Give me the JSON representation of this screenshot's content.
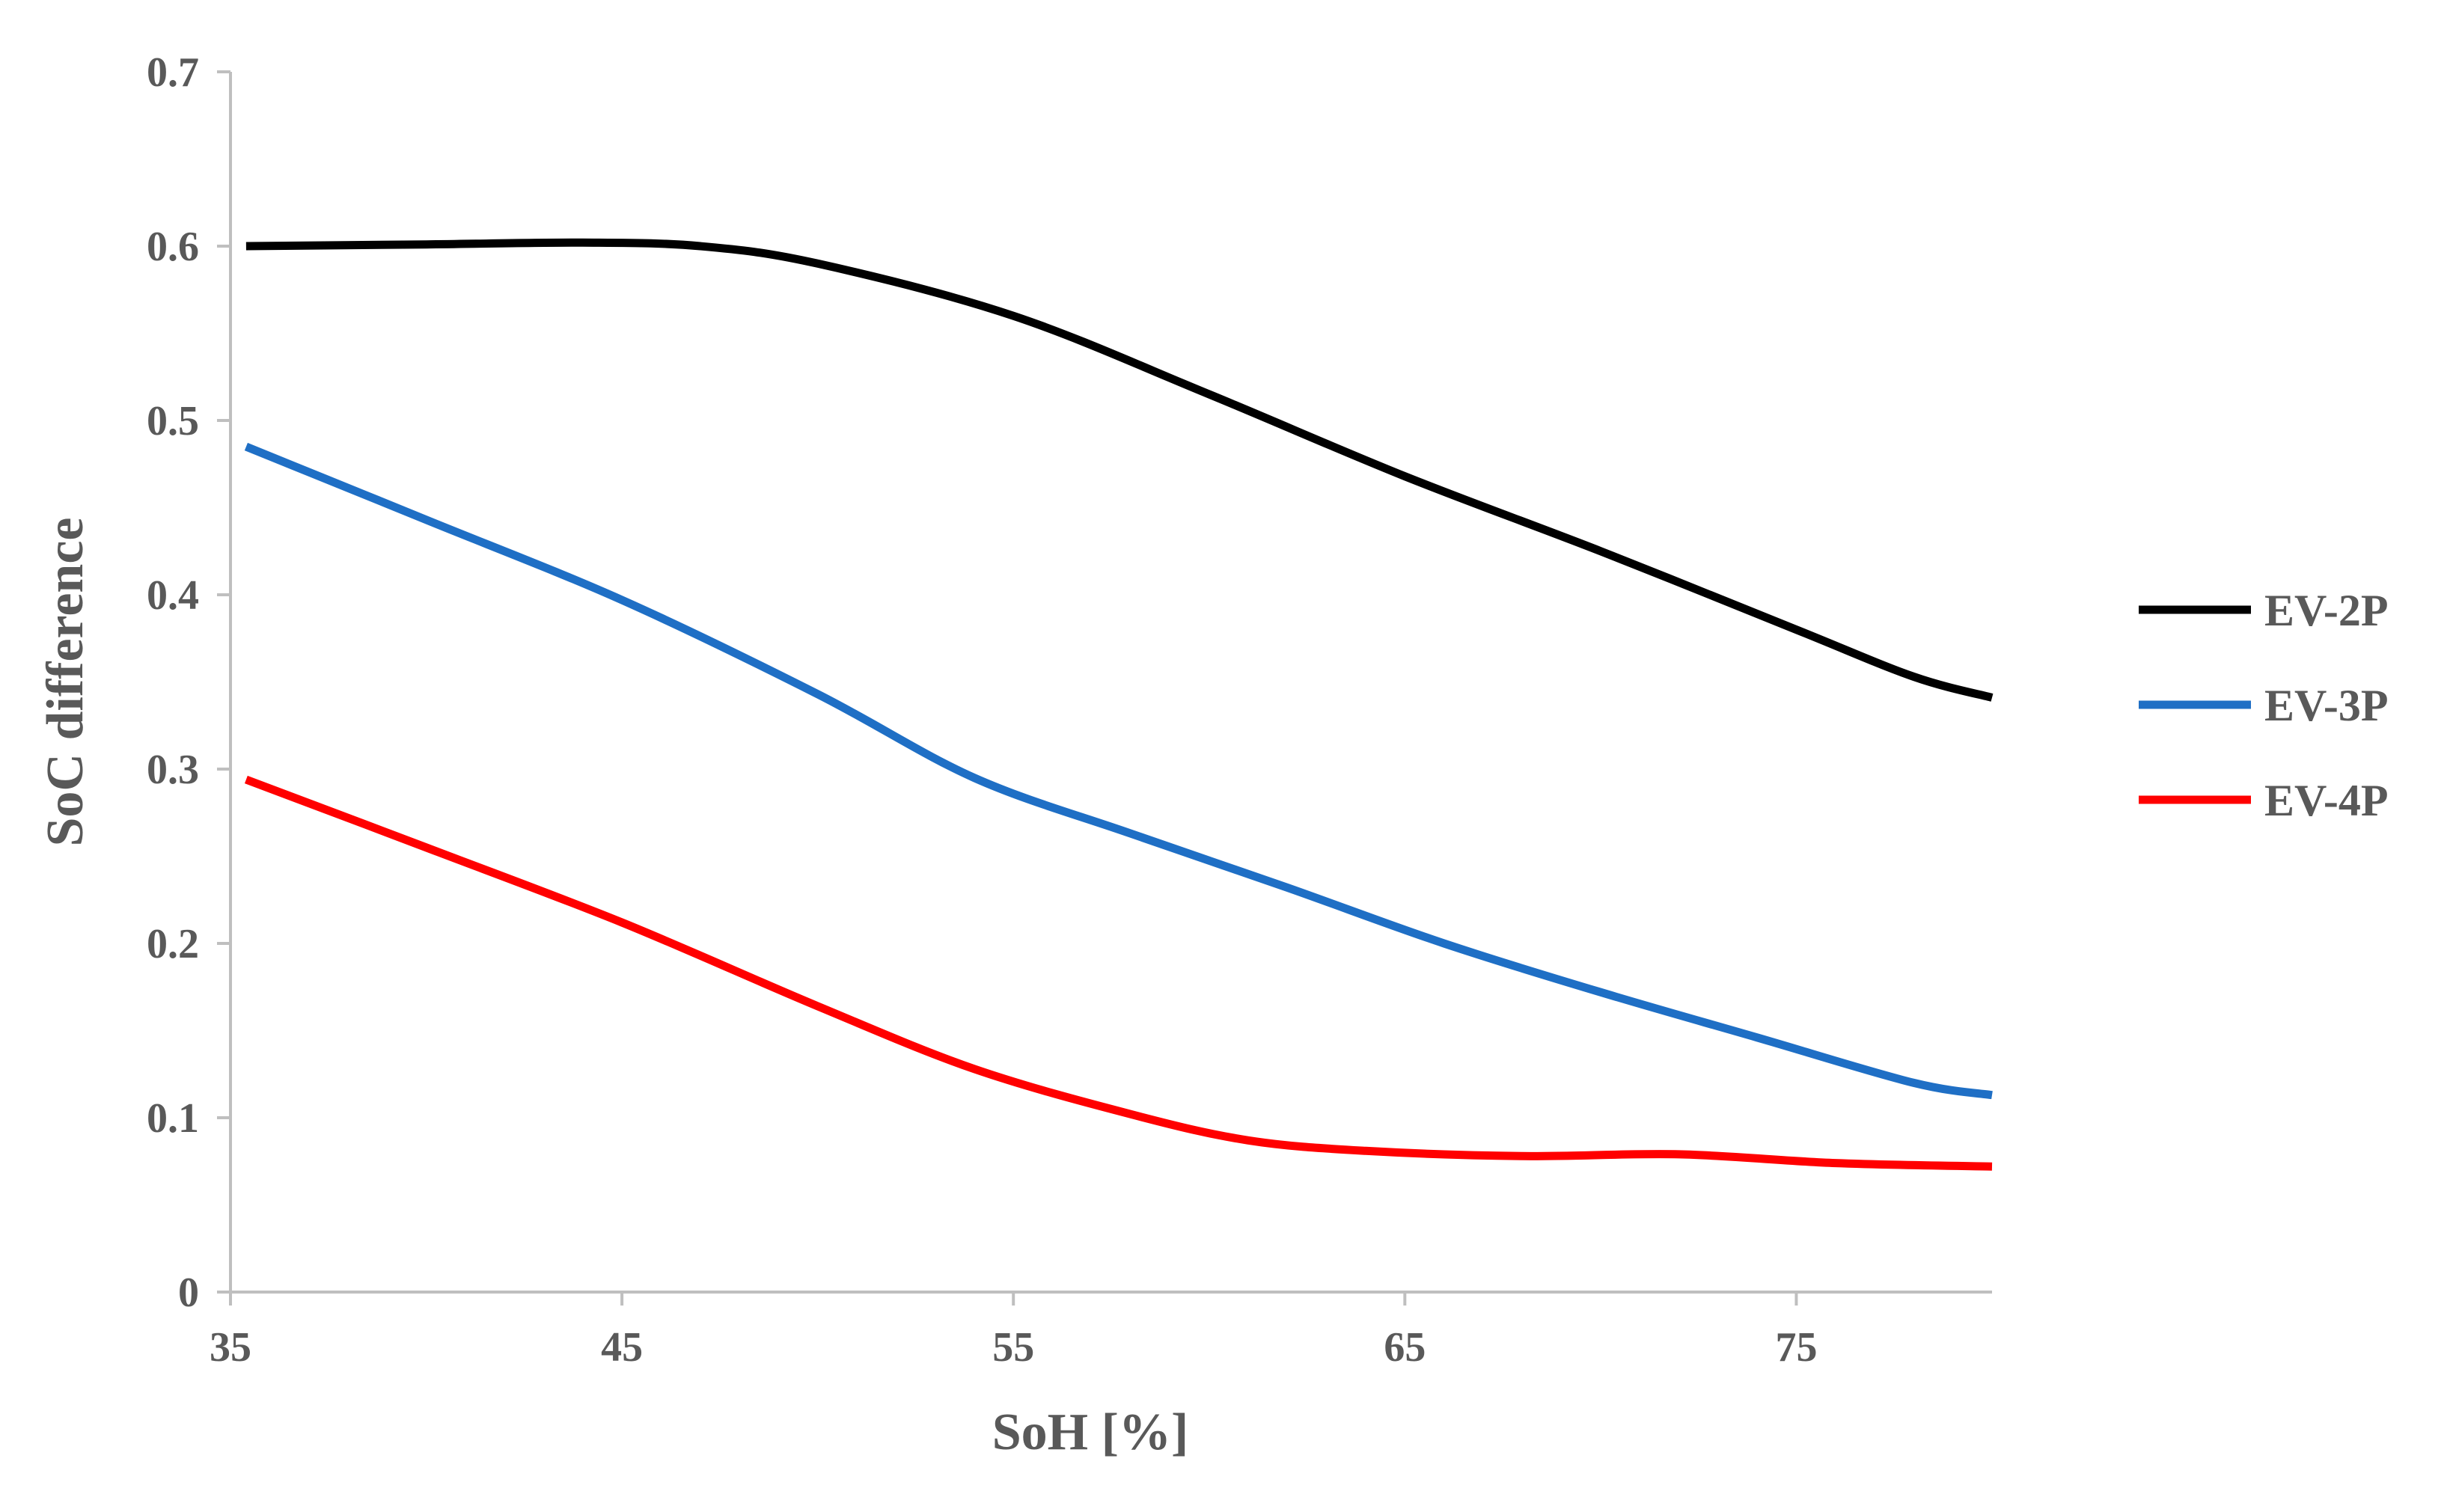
{
  "chart_data": {
    "type": "line",
    "title": "",
    "xlabel": "SoH [%]",
    "ylabel": "SoC difference",
    "xlim": [
      35,
      80
    ],
    "ylim": [
      0,
      0.7
    ],
    "xticks": [
      35,
      45,
      55,
      65,
      75
    ],
    "xtick_labels": [
      "35",
      "45",
      "55",
      "65",
      "75"
    ],
    "yticks": [
      0,
      0.1,
      0.2,
      0.3,
      0.4,
      0.5,
      0.6,
      0.7
    ],
    "ytick_labels": [
      "0",
      "0.1",
      "0.2",
      "0.3",
      "0.4",
      "0.5",
      "0.6",
      "0.7"
    ],
    "grid": false,
    "legend_position": "right",
    "series": [
      {
        "name": "EV-2P",
        "color": "#000000",
        "x": [
          35.4,
          40,
          44,
          47,
          50,
          55,
          60,
          65,
          70,
          75,
          78,
          80
        ],
        "y": [
          0.6,
          0.601,
          0.602,
          0.6,
          0.59,
          0.56,
          0.515,
          0.468,
          0.425,
          0.38,
          0.353,
          0.341
        ]
      },
      {
        "name": "EV-3P",
        "color": "#1f6fc5",
        "x": [
          35.4,
          40,
          45,
          50,
          54,
          58,
          62,
          66,
          70,
          74,
          78,
          80
        ],
        "y": [
          0.485,
          0.443,
          0.397,
          0.343,
          0.295,
          0.263,
          0.232,
          0.2,
          0.172,
          0.146,
          0.12,
          0.113
        ]
      },
      {
        "name": "EV-4P",
        "color": "#ff0000",
        "x": [
          35.4,
          40,
          45,
          50,
          54,
          58,
          61,
          64,
          68,
          72,
          76,
          80
        ],
        "y": [
          0.294,
          0.255,
          0.212,
          0.164,
          0.128,
          0.102,
          0.087,
          0.081,
          0.078,
          0.079,
          0.074,
          0.072
        ]
      }
    ]
  }
}
